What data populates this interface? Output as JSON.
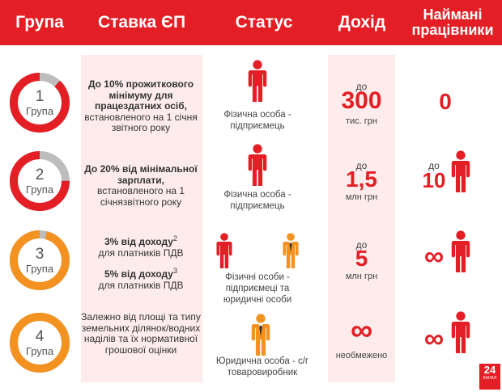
{
  "colors": {
    "red": "#e31e24",
    "orange": "#f39221",
    "grey": "#bdbdbd",
    "band": "#fdeceb"
  },
  "header": {
    "group": "Група",
    "rate": "Ставка ЄП",
    "status": "Статус",
    "income": "Дохід",
    "employees": "Наймані працівники"
  },
  "rows": [
    {
      "circle": {
        "number": "1",
        "label": "Група",
        "color": "#e31e24",
        "fill_fraction": 0.88
      },
      "rate": {
        "bold": "До 10% прожиткового мінімуму для працездатних осіб,",
        "normal": "встановленого на 1 січня звітного року"
      },
      "status": {
        "text": "Фізична особа - підприємець",
        "icon": "person-icon"
      },
      "income": {
        "prefix": "до",
        "value": "300",
        "unit": "тис. грн"
      },
      "employees": {
        "value": "0"
      }
    },
    {
      "circle": {
        "number": "2",
        "label": "Група",
        "color": "#e31e24",
        "fill_fraction": 0.75
      },
      "rate": {
        "bold": "До 20% від мінімальної зарплати,",
        "normal": "встановленого на 1 січнязвітного року"
      },
      "status": {
        "text": "Фізична особа - підприємець",
        "icon": "person-icon"
      },
      "income": {
        "prefix": "до",
        "value": "1,5",
        "unit": "млн грн"
      },
      "employees": {
        "prefix": "до",
        "value": "10",
        "icon": "person-icon"
      }
    },
    {
      "circle": {
        "number": "3",
        "label": "Група",
        "color": "#f39221",
        "fill_fraction": 0.96
      },
      "rate": {
        "line1_bold": "3% від доходу",
        "line1_sup": "2",
        "line1_normal": "для платників ПДВ",
        "line2_bold": "5% від доходу",
        "line2_sup": "3",
        "line2_normal": "для платників ПДВ"
      },
      "status": {
        "text": "Фізичні особи - підприємеці та юридичні особи",
        "icons": [
          "person-icon",
          "businessman-icon"
        ]
      },
      "income": {
        "prefix": "до",
        "value": "5",
        "unit": "млн грн"
      },
      "employees": {
        "value": "∞",
        "icon": "person-icon"
      }
    },
    {
      "circle": {
        "number": "4",
        "label": "Група",
        "color": "#f39221",
        "fill_fraction": 1.0
      },
      "rate": {
        "normal": "Залежно від площі та типу земельних ділянок/водних наділів та їх нормативної грошової оцінки"
      },
      "status": {
        "text": "Юридична особа - с/г товаровиробник",
        "icon": "businessman-icon"
      },
      "income": {
        "value": "∞",
        "unit": "необмежено"
      },
      "employees": {
        "value": "∞",
        "icon": "person-icon"
      }
    }
  ],
  "logo": {
    "main": "24",
    "sub": "КАНАЛ"
  }
}
